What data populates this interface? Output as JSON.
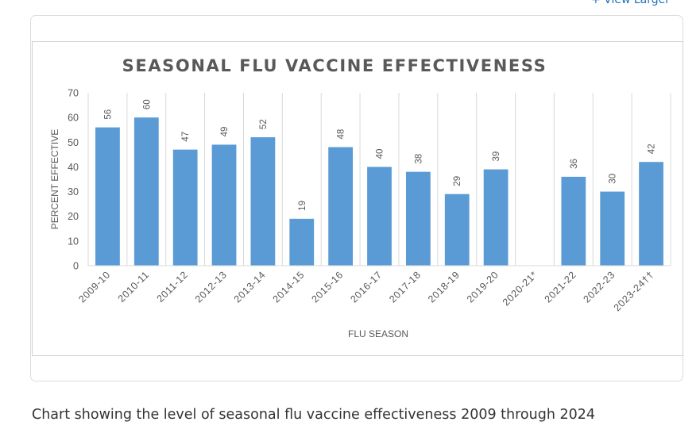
{
  "header": {
    "view_larger": "+ View Larger"
  },
  "caption": "Chart showing the level of seasonal flu vaccine effectiveness 2009 through 2024",
  "colors": {
    "bar": "#5b9bd5",
    "grid": "#d9d9d9",
    "axis_text": "#595959",
    "title": "#595959"
  },
  "chart_data": {
    "type": "bar",
    "title": "SEASONAL FLU VACCINE EFFECTIVENESS",
    "xlabel": "FLU SEASON",
    "ylabel": "PERCENT EFFECTIVE",
    "ylim": [
      0,
      70
    ],
    "yticks": [
      0,
      10,
      20,
      30,
      40,
      50,
      60,
      70
    ],
    "grid": "vertical",
    "categories": [
      "2009-10",
      "2010-11",
      "2011-12",
      "2012-13",
      "2013-14",
      "2014-15",
      "2015-16",
      "2016-17",
      "2017-18",
      "2018-19",
      "2019-20",
      "2020-21*",
      "2021-22",
      "2022-23",
      "2023-24††"
    ],
    "values": [
      56,
      60,
      47,
      49,
      52,
      19,
      48,
      40,
      38,
      29,
      39,
      null,
      36,
      30,
      42
    ],
    "value_labels": [
      "56",
      "60",
      "47",
      "49",
      "52",
      "19",
      "48",
      "40",
      "38",
      "29",
      "39",
      "",
      "36",
      "30",
      "42"
    ]
  }
}
